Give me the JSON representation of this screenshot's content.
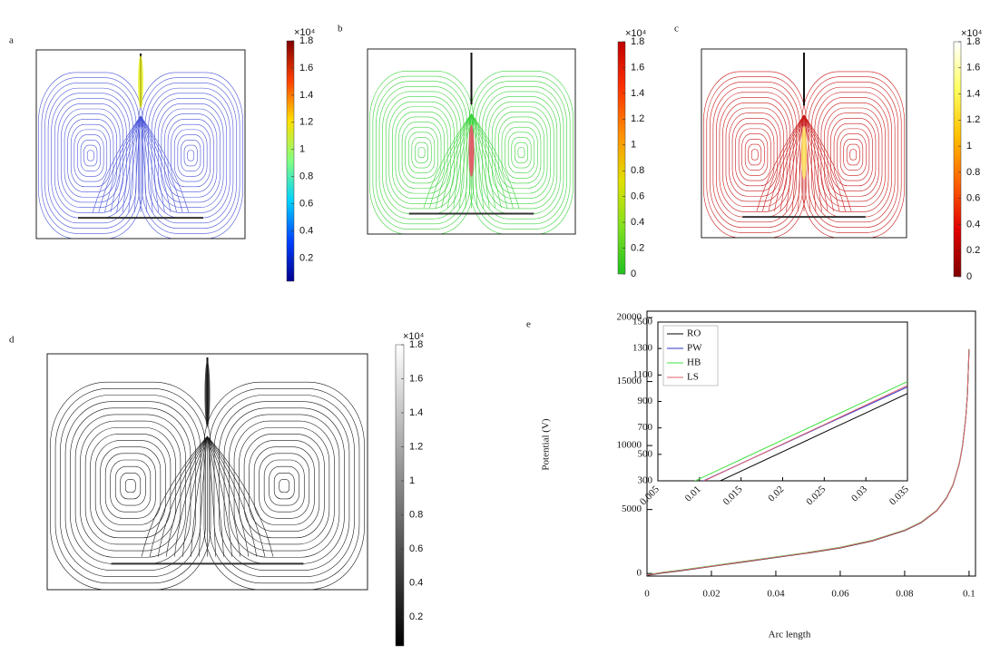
{
  "chart_data": [
    {
      "type": "streamline",
      "label": "a",
      "line_color": "#4a55d8",
      "hot_color": "#e8f020",
      "colorbar": {
        "multiplier": "×10⁴",
        "clim": [
          0.03,
          1.8
        ],
        "ticks": [
          0.2,
          0.4,
          0.6,
          0.8,
          1,
          1.2,
          1.4,
          1.6,
          1.8
        ],
        "colormap": [
          "#00008f",
          "#0040ff",
          "#00d0ff",
          "#80ff80",
          "#ffe000",
          "#ff4000",
          "#800000"
        ]
      }
    },
    {
      "type": "streamline",
      "label": "b",
      "line_color": "#3cd23c",
      "hot_color": "#f04060",
      "colorbar": {
        "multiplier": "×10⁴",
        "clim": [
          0,
          1.8
        ],
        "ticks": [
          0,
          0.2,
          0.4,
          0.6,
          0.8,
          1,
          1.2,
          1.4,
          1.6,
          1.8
        ],
        "colormap": [
          "#20c020",
          "#80e020",
          "#e0e000",
          "#ff9000",
          "#ff3000",
          "#c00000"
        ]
      }
    },
    {
      "type": "streamline",
      "label": "c",
      "line_color": "#c81818",
      "hot_color": "#fff060",
      "colorbar": {
        "multiplier": "×10⁴",
        "clim": [
          0,
          1.8
        ],
        "ticks": [
          0,
          0.2,
          0.4,
          0.6,
          0.8,
          1,
          1.2,
          1.4,
          1.6,
          1.8
        ],
        "colormap": [
          "#800000",
          "#e00000",
          "#ff6000",
          "#ffc000",
          "#ffff60",
          "#ffffff"
        ]
      }
    },
    {
      "type": "streamline",
      "label": "d",
      "line_color": "#1a1a1a",
      "hot_color": "#1a1a1a",
      "colorbar": {
        "multiplier": "×10⁴",
        "clim": [
          0.03,
          1.8
        ],
        "ticks": [
          0.2,
          0.4,
          0.6,
          0.8,
          1,
          1.2,
          1.4,
          1.6,
          1.8
        ],
        "colormap": [
          "#000000",
          "#ffffff"
        ]
      }
    },
    {
      "type": "line",
      "label": "e",
      "xlabel": "Arc length",
      "ylabel": "Potential (V)",
      "x": [
        0,
        0.005,
        0.01,
        0.02,
        0.03,
        0.04,
        0.05,
        0.06,
        0.07,
        0.08,
        0.085,
        0.09,
        0.093,
        0.095,
        0.097,
        0.098,
        0.099,
        0.0995,
        0.1
      ],
      "series": [
        {
          "color": "#000000",
          "values": [
            -150,
            50,
            200,
            550,
            900,
            1250,
            1600,
            2000,
            2550,
            3350,
            3950,
            4900,
            5900,
            6900,
            8600,
            10000,
            12200,
            14000,
            17500
          ]
        },
        {
          "color": "#3030c8",
          "values": [
            -120,
            80,
            230,
            580,
            930,
            1280,
            1630,
            2030,
            2580,
            3380,
            3980,
            4930,
            5930,
            6930,
            8630,
            10030,
            12230,
            14030,
            17530
          ]
        },
        {
          "color": "#40e040",
          "values": [
            -100,
            100,
            250,
            600,
            950,
            1300,
            1650,
            2050,
            2600,
            3400,
            4000,
            4950,
            5950,
            6950,
            8650,
            10050,
            12250,
            14050,
            17550
          ]
        },
        {
          "color": "#e06070",
          "values": [
            -125,
            75,
            225,
            575,
            925,
            1275,
            1625,
            2025,
            2575,
            3375,
            3975,
            4925,
            5925,
            6925,
            8625,
            10025,
            12225,
            14025,
            17525
          ]
        }
      ],
      "xlim": [
        0,
        0.102
      ],
      "ylim": [
        -200,
        20500
      ],
      "xticks": [
        0,
        0.02,
        0.04,
        0.06,
        0.08,
        0.1
      ],
      "yticks": [
        0,
        5000,
        10000,
        15000,
        20000
      ]
    },
    {
      "type": "line",
      "legend": "upper left",
      "x": [
        0.005,
        0.01,
        0.015,
        0.02,
        0.025,
        0.03,
        0.035
      ],
      "series": [
        {
          "name": "RO",
          "color": "#000000",
          "values": [
            80,
            227,
            373,
            520,
            667,
            813,
            960
          ]
        },
        {
          "name": "PW",
          "color": "#3030c8",
          "values": [
            141,
            286,
            431,
            576,
            721,
            865,
            1010
          ]
        },
        {
          "name": "HB",
          "color": "#40e040",
          "values": [
            168,
            315,
            462,
            609,
            756,
            903,
            1050
          ]
        },
        {
          "name": "LS",
          "color": "#e06070",
          "values": [
            135,
            283,
            430,
            578,
            725,
            873,
            1020
          ]
        }
      ],
      "xlim": [
        0.005,
        0.035
      ],
      "ylim": [
        300,
        1500
      ],
      "xticks": [
        0.005,
        0.01,
        0.015,
        0.02,
        0.025,
        0.03,
        0.035
      ],
      "yticks": [
        300,
        500,
        700,
        900,
        1100,
        1300,
        1500
      ]
    }
  ]
}
